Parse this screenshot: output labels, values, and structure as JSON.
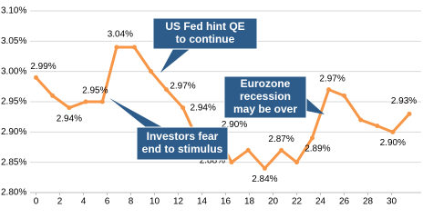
{
  "chart_data": {
    "type": "line",
    "x": [
      0,
      1.4,
      2.8,
      4.2,
      5.6,
      6.8,
      8.3,
      9.7,
      11,
      12.4,
      13.8,
      15.2,
      16.5,
      17.9,
      19.3,
      20.7,
      22,
      23.3,
      24.7,
      26,
      27.4,
      28.8,
      30.1,
      31.5
    ],
    "series": [
      {
        "color": "#f79646",
        "values": [
          2.99,
          2.96,
          2.94,
          2.95,
          2.95,
          3.04,
          3.04,
          3.0,
          2.97,
          2.94,
          2.88,
          2.9,
          2.85,
          2.87,
          2.84,
          2.87,
          2.85,
          2.89,
          2.97,
          2.96,
          2.92,
          2.91,
          2.9,
          2.93
        ],
        "value_labels": [
          "2.99%",
          null,
          "2.94%",
          null,
          "2.95%",
          "3.04%",
          null,
          null,
          "2.97%",
          "2.94%",
          "2.88%",
          "2.90%",
          null,
          null,
          "2.84%",
          "2.87%",
          null,
          "2.89%",
          "2.97%",
          null,
          null,
          null,
          "2.90%",
          "2.93%"
        ]
      }
    ],
    "xlim": [
      -0.5,
      32.5
    ],
    "xticks": [
      0,
      2,
      4,
      6,
      8,
      10,
      12,
      14,
      16,
      18,
      20,
      22,
      24,
      26,
      28,
      30
    ],
    "ylim": [
      2.8,
      3.1
    ],
    "yticks": [
      {
        "value": 2.8,
        "label": "2.80%"
      },
      {
        "value": 2.85,
        "label": "2.85%"
      },
      {
        "value": 2.9,
        "label": "2.90%"
      },
      {
        "value": 2.95,
        "label": "2.95%"
      },
      {
        "value": 3.0,
        "label": "3.00%"
      },
      {
        "value": 3.05,
        "label": "3.05%"
      },
      {
        "value": 3.1,
        "label": "3.10%"
      }
    ],
    "grid": true,
    "annotations": [
      {
        "lines": [
          "US Fed hint QE",
          "to continue"
        ],
        "color": "#2e5c8a"
      },
      {
        "lines": [
          "Investors fear",
          "end to stimulus"
        ],
        "color": "#2e5c8a"
      },
      {
        "lines": [
          "Eurozone",
          "recession",
          "may be over"
        ],
        "color": "#2e5c8a"
      }
    ]
  }
}
